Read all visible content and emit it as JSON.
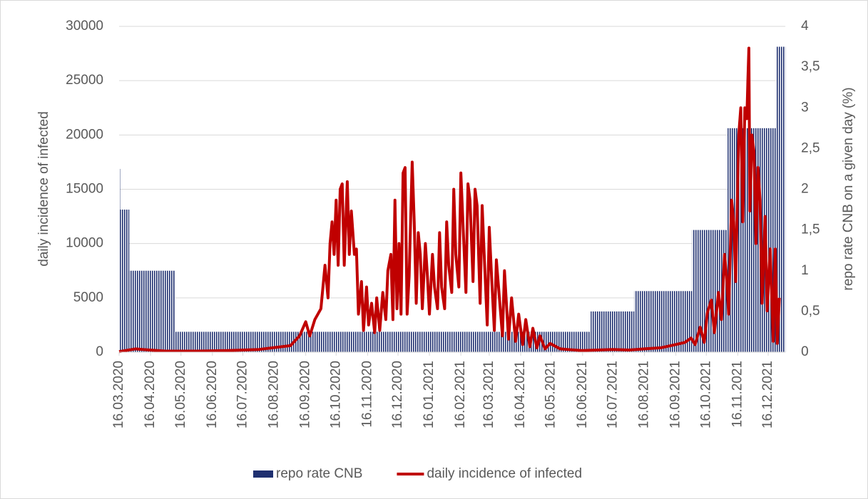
{
  "chart_data": {
    "type": "bar-line",
    "ylabel": "daily incidence of infected",
    "y2label": "repo rate CNB on a given day (%)",
    "ylim": [
      0,
      30000
    ],
    "yticks": [
      0,
      5000,
      10000,
      15000,
      20000,
      25000,
      30000
    ],
    "y2lim": [
      0,
      4
    ],
    "y2ticks": [
      0,
      {
        "value": 0.5,
        "label": "0,5"
      },
      1,
      {
        "value": 1.5,
        "label": "1,5"
      },
      2,
      {
        "value": 2.5,
        "label": "2,5"
      },
      3,
      {
        "value": 3.5,
        "label": "3,5"
      },
      4
    ],
    "xlim": [
      "16.03.2020",
      "02.01.2022"
    ],
    "xticks": [
      "16.03.2020",
      "16.04.2020",
      "16.05.2020",
      "16.06.2020",
      "16.07.2020",
      "16.08.2020",
      "16.09.2020",
      "16.10.2020",
      "16.11.2020",
      "16.12.2020",
      "16.01.2021",
      "16.02.2021",
      "16.03.2021",
      "16.04.2021",
      "16.05.2021",
      "16.06.2021",
      "16.07.2021",
      "16.08.2021",
      "16.09.2021",
      "16.10.2021",
      "16.11.2021",
      "16.12.2021"
    ],
    "grid": true,
    "legend": "bottom",
    "series": [
      {
        "name": "repo rate CNB",
        "type": "bar",
        "axis": "y2",
        "color": "#1f3070",
        "x": [
          "16.03.2020",
          "17.03.2020",
          "26.03.2020",
          "10.05.2020",
          "24.06.2021",
          "06.08.2021",
          "02.10.2021",
          "06.11.2021",
          "24.12.2021"
        ],
        "values": [
          2.25,
          1.75,
          1,
          0.25,
          0.5,
          0.75,
          1.5,
          2.75,
          3.75
        ]
      },
      {
        "name": "daily incidence of infected",
        "type": "line",
        "color": "#c00000",
        "x": [
          "16.03.2020",
          "01.04.2020",
          "15.04.2020",
          "01.05.2020",
          "01.06.2020",
          "01.07.2020",
          "01.08.2020",
          "01.09.2020",
          "10.09.2020",
          "16.09.2020",
          "20.09.2020",
          "25.09.2020",
          "01.10.2020",
          "05.10.2020",
          "08.10.2020",
          "10.10.2020",
          "12.10.2020",
          "14.10.2020",
          "16.10.2020",
          "18.10.2020",
          "20.10.2020",
          "22.10.2020",
          "24.10.2020",
          "27.10.2020",
          "29.10.2020",
          "31.10.2020",
          "03.11.2020",
          "05.11.2020",
          "07.11.2020",
          "10.11.2020",
          "12.11.2020",
          "15.11.2020",
          "17.11.2020",
          "20.11.2020",
          "23.11.2020",
          "25.11.2020",
          "28.11.2020",
          "01.12.2020",
          "04.12.2020",
          "06.12.2020",
          "09.12.2020",
          "11.12.2020",
          "13.12.2020",
          "15.12.2020",
          "17.12.2020",
          "19.12.2020",
          "21.12.2020",
          "23.12.2020",
          "25.12.2020",
          "27.12.2020",
          "30.12.2020",
          "01.01.2021",
          "03.01.2021",
          "05.01.2021",
          "07.01.2021",
          "09.01.2021",
          "12.01.2021",
          "14.01.2021",
          "16.01.2021",
          "19.01.2021",
          "21.01.2021",
          "24.01.2021",
          "26.01.2021",
          "28.01.2021",
          "31.01.2021",
          "02.02.2021",
          "04.02.2021",
          "07.02.2021",
          "09.02.2021",
          "11.02.2021",
          "14.02.2021",
          "16.02.2021",
          "18.02.2021",
          "21.02.2021",
          "23.02.2021",
          "25.02.2021",
          "28.02.2021",
          "02.03.2021",
          "04.03.2021",
          "07.03.2021",
          "09.03.2021",
          "11.03.2021",
          "14.03.2021",
          "16.03.2021",
          "18.03.2021",
          "21.03.2021",
          "23.03.2021",
          "26.03.2021",
          "29.03.2021",
          "31.03.2021",
          "04.04.2021",
          "07.04.2021",
          "11.04.2021",
          "14.04.2021",
          "18.04.2021",
          "21.04.2021",
          "25.04.2021",
          "28.04.2021",
          "02.05.2021",
          "05.05.2021",
          "10.05.2021",
          "15.05.2021",
          "25.05.2021",
          "01.06.2021",
          "15.06.2021",
          "01.07.2021",
          "16.07.2021",
          "01.08.2021",
          "16.08.2021",
          "01.09.2021",
          "16.09.2021",
          "25.09.2021",
          "01.10.2021",
          "05.10.2021",
          "10.10.2021",
          "14.10.2021",
          "17.10.2021",
          "21.10.2021",
          "24.10.2021",
          "28.10.2021",
          "31.10.2021",
          "03.11.2021",
          "05.11.2021",
          "07.11.2021",
          "10.11.2021",
          "12.11.2021",
          "14.11.2021",
          "17.11.2021",
          "19.11.2021",
          "21.11.2021",
          "23.11.2021",
          "25.11.2021",
          "26.11.2021",
          "27.11.2021",
          "28.11.2021",
          "30.11.2021",
          "02.12.2021",
          "04.12.2021",
          "06.12.2021",
          "08.12.2021",
          "10.12.2021",
          "13.12.2021",
          "15.12.2021",
          "18.12.2021",
          "21.12.2021",
          "23.12.2021",
          "25.12.2021",
          "27.12.2021"
        ],
        "values": [
          50,
          300,
          200,
          100,
          100,
          150,
          250,
          600,
          1500,
          2800,
          1500,
          3000,
          4000,
          8000,
          5000,
          10000,
          12000,
          9000,
          14000,
          8000,
          15000,
          15500,
          8000,
          15700,
          9000,
          13000,
          9000,
          9500,
          3500,
          6500,
          2000,
          6000,
          2500,
          4500,
          1800,
          5000,
          2000,
          5500,
          3000,
          7500,
          9000,
          3000,
          14000,
          4000,
          10000,
          3500,
          16500,
          17000,
          3500,
          7000,
          17500,
          12000,
          4500,
          11000,
          9000,
          4000,
          10000,
          7000,
          3500,
          9000,
          6000,
          4000,
          11000,
          6000,
          4000,
          12000,
          8000,
          5500,
          15000,
          9000,
          6000,
          16500,
          12000,
          5500,
          15500,
          14000,
          6500,
          15000,
          13500,
          4500,
          13500,
          9000,
          2500,
          11500,
          7500,
          2000,
          8500,
          5000,
          1500,
          7500,
          1200,
          5000,
          1000,
          3500,
          700,
          3000,
          500,
          2200,
          400,
          1500,
          300,
          800,
          300,
          250,
          150,
          200,
          250,
          200,
          300,
          400,
          700,
          900,
          1300,
          700,
          2300,
          900,
          3600,
          4800,
          1800,
          5500,
          3000,
          9000,
          7000,
          3500,
          14000,
          12000,
          6500,
          20000,
          22500,
          12000,
          22500,
          21500,
          25000,
          28000,
          13000,
          20000,
          18500,
          10000,
          17000,
          14000,
          4500,
          12500,
          3800,
          9500,
          1000,
          9500,
          800,
          5000
        ]
      }
    ]
  }
}
